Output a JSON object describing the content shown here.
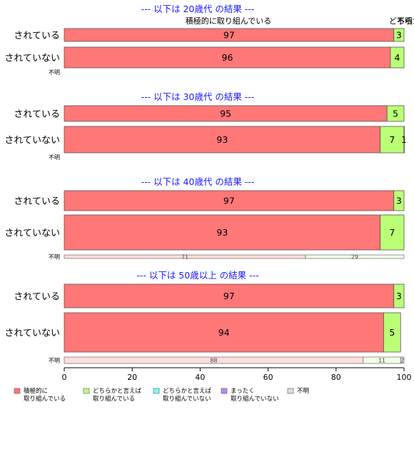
{
  "chart_data": {
    "type": "bar",
    "orientation": "horizontal-stacked-percent",
    "xlim": [
      0,
      100
    ],
    "xticks": [
      "0",
      "20",
      "40",
      "60",
      "80",
      "100"
    ],
    "top_header_labels": [
      "積極的に取り組んでいる",
      "どちらか",
      "不明"
    ],
    "categories_legend": [
      {
        "key": "c1",
        "lines": [
          "積極的に",
          "取り組んでいる"
        ],
        "color": "#ff7777"
      },
      {
        "key": "c2",
        "lines": [
          "どちらかと言えば",
          "取り組んでいる"
        ],
        "color": "#bbff77"
      },
      {
        "key": "c3",
        "lines": [
          "どちらかと言えば",
          "取り組んでいない"
        ],
        "color": "#77ffff"
      },
      {
        "key": "c4",
        "lines": [
          "まったく",
          "取り組んでいない"
        ],
        "color": "#bb88ff"
      },
      {
        "key": "c5",
        "lines": [
          "不明"
        ],
        "color": "#dddddd"
      }
    ],
    "groups": [
      {
        "title": "--- 以下は 20歳代 の結果 ---",
        "rows": [
          {
            "label": "されている",
            "values": [
              97,
              3,
              0,
              0,
              0
            ],
            "shown": [
              "97",
              "3",
              "",
              "",
              ""
            ]
          },
          {
            "label": "されていない",
            "values": [
              96,
              4,
              0,
              0,
              0
            ],
            "shown": [
              "96",
              "4",
              "",
              "",
              ""
            ]
          },
          {
            "label": "不明",
            "values": [],
            "shown": []
          }
        ]
      },
      {
        "title": "--- 以下は 30歳代 の結果 ---",
        "rows": [
          {
            "label": "されている",
            "values": [
              95,
              5,
              0,
              0,
              0
            ],
            "shown": [
              "95",
              "5",
              "",
              "",
              ""
            ]
          },
          {
            "label": "されていない",
            "values": [
              93,
              7,
              1,
              0,
              0
            ],
            "shown": [
              "93",
              "7",
              "1",
              "",
              ""
            ]
          },
          {
            "label": "不明",
            "values": [],
            "shown": []
          }
        ]
      },
      {
        "title": "--- 以下は 40歳代 の結果 ---",
        "rows": [
          {
            "label": "されている",
            "values": [
              97,
              3,
              0,
              0,
              0
            ],
            "shown": [
              "97",
              "3",
              "",
              "",
              ""
            ]
          },
          {
            "label": "されていない",
            "values": [
              93,
              7,
              0,
              0,
              0
            ],
            "shown": [
              "93",
              "7",
              "",
              "",
              ""
            ]
          },
          {
            "label": "不明",
            "values": [
              71,
              29,
              0,
              0,
              0
            ],
            "shown": [
              "71",
              "29",
              "",
              "",
              ""
            ]
          }
        ]
      },
      {
        "title": "--- 以下は 50歳以上 の結果 ---",
        "rows": [
          {
            "label": "されている",
            "values": [
              97,
              3,
              0,
              0,
              0
            ],
            "shown": [
              "97",
              "3",
              "",
              "",
              ""
            ]
          },
          {
            "label": "されていない",
            "values": [
              94,
              5,
              0,
              0,
              0
            ],
            "shown": [
              "94",
              "5",
              "",
              "",
              ""
            ]
          },
          {
            "label": "不明",
            "values": [
              88,
              11,
              0,
              2,
              0
            ],
            "shown": [
              "88",
              "11",
              "",
              "2",
              ""
            ]
          }
        ]
      }
    ]
  }
}
